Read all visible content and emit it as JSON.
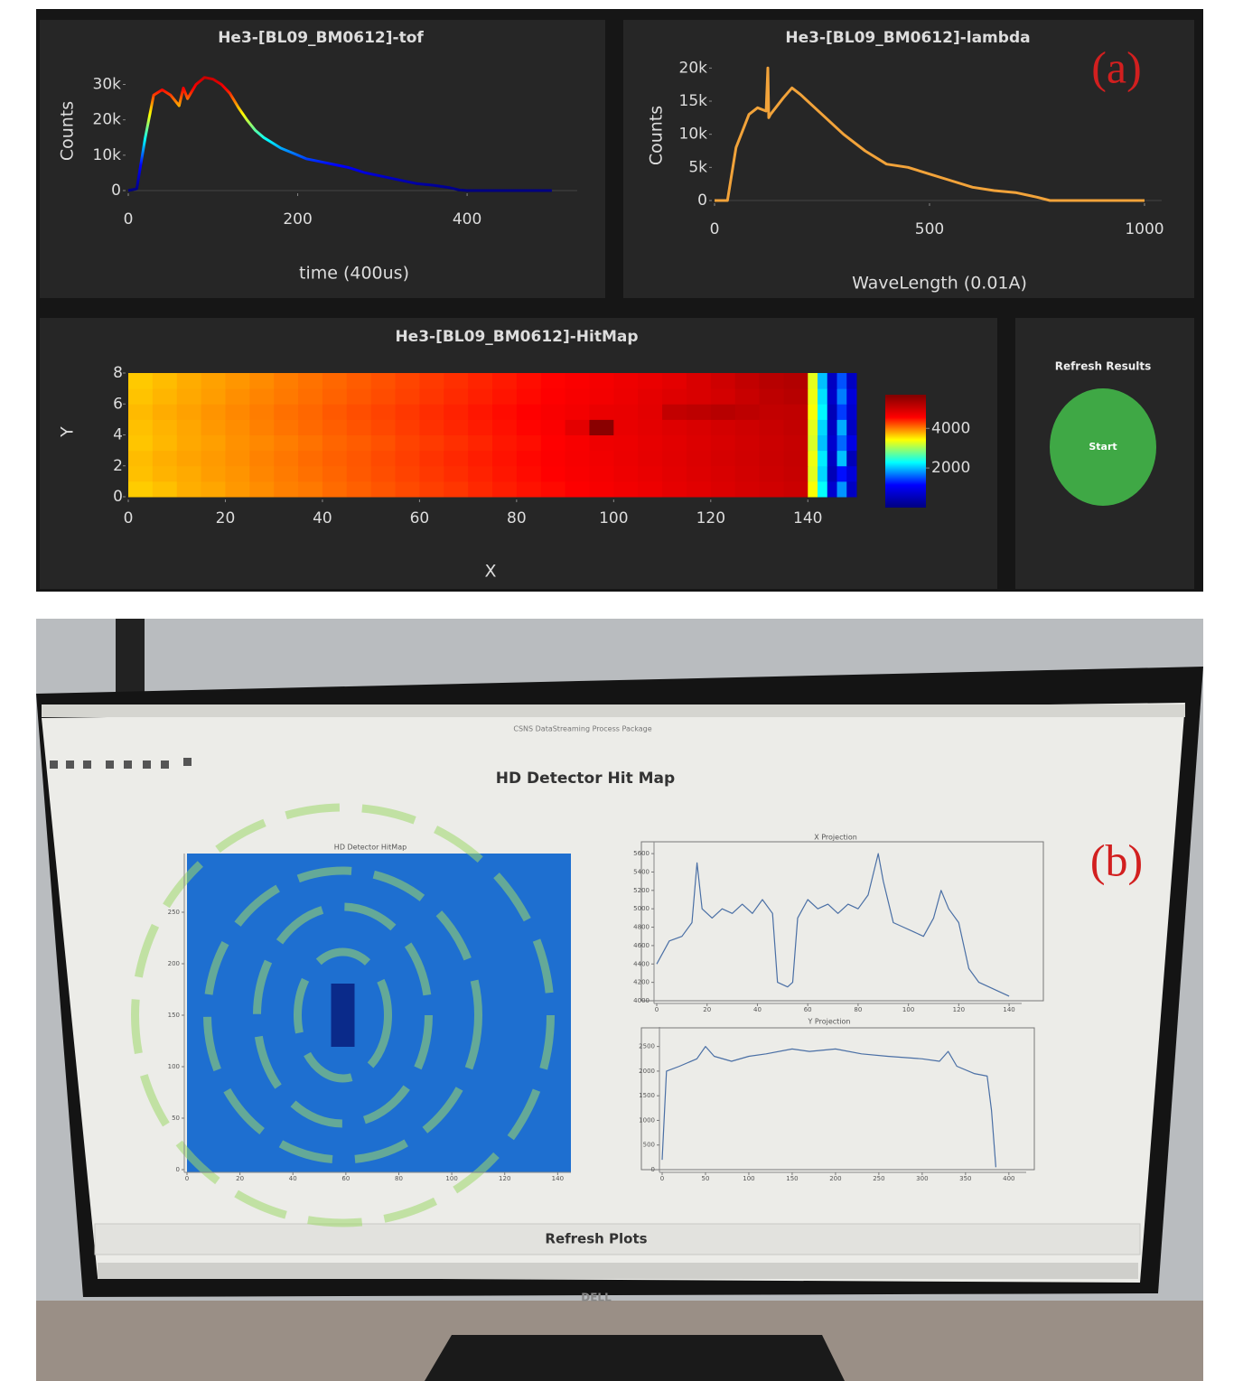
{
  "chart_data": [
    {
      "type": "line",
      "title": "He3-[BL09_BM0612]-tof",
      "xlabel": "time (400us)",
      "ylabel": "Counts",
      "x": [
        0,
        10,
        20,
        30,
        40,
        50,
        60,
        65,
        70,
        80,
        90,
        100,
        110,
        120,
        130,
        140,
        150,
        160,
        170,
        180,
        190,
        200,
        210,
        220,
        230,
        240,
        260,
        280,
        300,
        320,
        340,
        360,
        380,
        390,
        400,
        450,
        500
      ],
      "values": [
        0,
        500,
        15000,
        27000,
        28500,
        27000,
        24000,
        29000,
        26000,
        30000,
        32000,
        31500,
        30000,
        27500,
        23500,
        20000,
        17000,
        15000,
        13500,
        12000,
        11000,
        10000,
        9000,
        8500,
        8000,
        7500,
        6500,
        5000,
        4000,
        3000,
        2000,
        1500,
        800,
        200,
        0,
        0,
        0
      ],
      "colorscale": [
        "#00007f",
        "#0000ff",
        "#00ffff",
        "#ffff00",
        "#ff0000",
        "#7f0000"
      ],
      "xlim": [
        0,
        530
      ],
      "ylim": [
        0,
        36000
      ],
      "xticks": [
        0,
        200,
        400
      ],
      "yticks": [
        0,
        {
          "value": 10000,
          "label": "10k"
        },
        {
          "value": 20000,
          "label": "20k"
        },
        {
          "value": 30000,
          "label": "30k"
        }
      ]
    },
    {
      "type": "line",
      "title": "He3-[BL09_BM0612]-lambda",
      "xlabel": "WaveLength (0.01A)",
      "ylabel": "Counts",
      "color": "#f2a33a",
      "x": [
        0,
        30,
        50,
        80,
        100,
        120,
        124,
        126,
        130,
        160,
        180,
        200,
        250,
        300,
        350,
        400,
        450,
        500,
        550,
        600,
        650,
        700,
        750,
        780,
        1000
      ],
      "values": [
        0,
        0,
        8000,
        13000,
        14000,
        13500,
        20000,
        12500,
        13000,
        15500,
        17000,
        16000,
        13000,
        10000,
        7500,
        5500,
        5000,
        4000,
        3000,
        2000,
        1500,
        1200,
        500,
        0,
        0
      ],
      "xlim": [
        0,
        1040
      ],
      "ylim": [
        0,
        21000
      ],
      "xticks": [
        0,
        500,
        1000
      ],
      "yticks": [
        0,
        {
          "value": 5000,
          "label": "5k"
        },
        {
          "value": 10000,
          "label": "10k"
        },
        {
          "value": 15000,
          "label": "15k"
        },
        {
          "value": 20000,
          "label": "20k"
        }
      ]
    },
    {
      "type": "heatmap",
      "title": "He3-[BL09_BM0612]-HitMap",
      "xlabel": "X",
      "ylabel": "Y",
      "xbins": [
        0,
        5,
        10,
        15,
        20,
        25,
        30,
        35,
        40,
        45,
        50,
        55,
        60,
        65,
        70,
        75,
        80,
        85,
        90,
        95,
        100,
        105,
        110,
        115,
        120,
        125,
        130,
        135,
        140,
        142,
        144,
        146,
        148,
        150
      ],
      "ybins": [
        0,
        1,
        2,
        3,
        4,
        5,
        6,
        7,
        8
      ],
      "z": [
        [
          3650,
          3700,
          3780,
          3820,
          3880,
          3930,
          3990,
          4020,
          4080,
          4130,
          4180,
          4230,
          4280,
          4320,
          4380,
          4430,
          4480,
          4520,
          4580,
          4630,
          4680,
          4720,
          4780,
          4830,
          4880,
          4930,
          4980,
          5020,
          3400,
          2300,
          700,
          1800,
          600
        ],
        [
          3700,
          3760,
          3800,
          3860,
          3900,
          3960,
          4010,
          4060,
          4110,
          4160,
          4210,
          4260,
          4310,
          4360,
          4410,
          4460,
          4510,
          4560,
          4610,
          4660,
          4710,
          4760,
          4810,
          4860,
          4910,
          4960,
          5010,
          5060,
          3300,
          2100,
          500,
          1200,
          800
        ],
        [
          3720,
          3780,
          3830,
          3870,
          3920,
          3980,
          4030,
          4080,
          4130,
          4170,
          4230,
          4280,
          4330,
          4380,
          4430,
          4480,
          4530,
          4580,
          4630,
          4680,
          4730,
          4780,
          4830,
          4880,
          4930,
          4980,
          5030,
          5080,
          3350,
          2200,
          600,
          2000,
          500
        ],
        [
          3680,
          3740,
          3810,
          3850,
          3910,
          3950,
          4000,
          4050,
          4110,
          4150,
          4200,
          4260,
          4300,
          4350,
          4400,
          4460,
          4500,
          4560,
          4620,
          4700,
          4720,
          4770,
          4820,
          4870,
          4920,
          4970,
          5020,
          5070,
          3250,
          2000,
          700,
          1600,
          900
        ],
        [
          3700,
          3760,
          3820,
          3880,
          3930,
          3990,
          4040,
          4090,
          4140,
          4190,
          4240,
          4290,
          4340,
          4390,
          4440,
          4490,
          4540,
          4600,
          4800,
          5600,
          4760,
          4800,
          4850,
          4900,
          4950,
          5000,
          5050,
          5100,
          3300,
          2100,
          600,
          1900,
          600
        ],
        [
          3730,
          3790,
          3840,
          3900,
          3950,
          4000,
          4060,
          4100,
          4160,
          4210,
          4260,
          4310,
          4360,
          4410,
          4460,
          4510,
          4560,
          4610,
          4660,
          4750,
          4760,
          4810,
          5100,
          5150,
          5200,
          5150,
          5100,
          5120,
          3400,
          2250,
          500,
          1400,
          700
        ],
        [
          3690,
          3750,
          3810,
          3860,
          3920,
          3970,
          4020,
          4070,
          4120,
          4170,
          4220,
          4270,
          4320,
          4370,
          4420,
          4470,
          4520,
          4570,
          4620,
          4670,
          4720,
          4790,
          4850,
          4900,
          4950,
          5050,
          5150,
          5200,
          3350,
          2150,
          650,
          1700,
          800
        ],
        [
          3660,
          3720,
          3790,
          3840,
          3890,
          3940,
          4000,
          4050,
          4100,
          4150,
          4200,
          4250,
          4300,
          4350,
          4400,
          4450,
          4500,
          4550,
          4600,
          4650,
          4700,
          4750,
          4800,
          4900,
          5000,
          5100,
          5200,
          5250,
          3300,
          2000,
          600,
          1500,
          600
        ]
      ],
      "colorscale": [
        "#00007f",
        "#0000ff",
        "#00ffff",
        "#ffff00",
        "#ff0000",
        "#7f0000"
      ],
      "zlim": [
        0,
        5700
      ],
      "zticks": [
        2000,
        4000
      ],
      "xlim": [
        0,
        150
      ],
      "ylim": [
        0,
        8
      ],
      "xticks": [
        0,
        20,
        40,
        60,
        80,
        100,
        120,
        140
      ],
      "yticks": [
        0,
        2,
        4,
        6,
        8
      ]
    },
    {
      "type": "image",
      "title": "HD Detector HitMap",
      "xlim": [
        0,
        145
      ],
      "ylim": [
        0,
        300
      ],
      "xticks": [
        0,
        20,
        40,
        60,
        80,
        100,
        120,
        140
      ],
      "yticks": [
        0,
        50,
        100,
        150,
        200,
        250
      ]
    },
    {
      "type": "line",
      "title": "X Projection",
      "color": "#4a6fa5",
      "x": [
        0,
        5,
        10,
        14,
        16,
        18,
        22,
        26,
        30,
        34,
        38,
        42,
        46,
        48,
        52,
        54,
        56,
        60,
        64,
        68,
        72,
        76,
        80,
        84,
        88,
        90,
        94,
        98,
        102,
        106,
        110,
        113,
        116,
        120,
        124,
        128,
        132,
        136,
        140
      ],
      "values": [
        4400,
        4650,
        4700,
        4850,
        5500,
        5000,
        4900,
        5000,
        4950,
        5050,
        4950,
        5100,
        4950,
        4200,
        4150,
        4200,
        4900,
        5100,
        5000,
        5050,
        4950,
        5050,
        5000,
        5150,
        5600,
        5300,
        4850,
        4800,
        4750,
        4700,
        4900,
        5200,
        5000,
        4850,
        4350,
        4200,
        4150,
        4100,
        4050
      ],
      "xlim": [
        0,
        145
      ],
      "ylim": [
        4000,
        5650
      ],
      "xticks": [
        0,
        20,
        40,
        60,
        80,
        100,
        120,
        140
      ],
      "yticks": [
        4000,
        4200,
        4400,
        4600,
        4800,
        5000,
        5200,
        5400,
        5600
      ]
    },
    {
      "type": "line",
      "title": "Y Projection",
      "color": "#4a6fa5",
      "x": [
        0,
        5,
        20,
        40,
        50,
        60,
        80,
        100,
        120,
        150,
        170,
        200,
        230,
        260,
        300,
        320,
        330,
        340,
        360,
        375,
        380,
        385
      ],
      "values": [
        200,
        2000,
        2100,
        2250,
        2500,
        2300,
        2200,
        2300,
        2350,
        2450,
        2400,
        2450,
        2350,
        2300,
        2250,
        2200,
        2400,
        2100,
        1950,
        1900,
        1200,
        50
      ],
      "xlim": [
        0,
        420
      ],
      "ylim": [
        0,
        2750
      ],
      "xticks": [
        0,
        50,
        100,
        150,
        200,
        250,
        300,
        350,
        400
      ],
      "yticks": [
        0,
        500,
        1000,
        1500,
        2000,
        2500
      ]
    }
  ],
  "labels": {
    "a": "(a)",
    "b": "(b)"
  },
  "refresh_panel": {
    "title": "Refresh Results",
    "button": "Start"
  },
  "screen": {
    "window_title": "CSNS DataStreaming Process Package",
    "title": "HD Detector Hit Map",
    "button": "Refresh Plots",
    "brand": "DELL"
  }
}
